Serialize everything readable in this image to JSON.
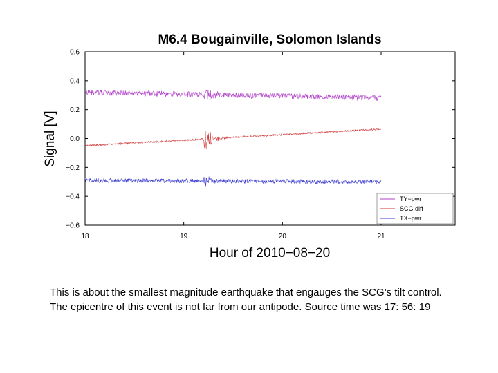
{
  "chart_data": {
    "type": "line",
    "title": "M6.4 Bougainville, Solomon Islands",
    "xlabel": "Hour of 2010−08−20",
    "ylabel": "Signal [V]",
    "xlim": [
      18,
      21.75
    ],
    "ylim": [
      -0.6,
      0.6
    ],
    "x_ticks": [
      18,
      19,
      20,
      21
    ],
    "y_ticks": [
      0.6,
      0.4,
      0.2,
      0.0,
      -0.2,
      -0.4,
      -0.6
    ],
    "y_tick_labels": [
      "0.6",
      "0.4",
      "0.2",
      "0.0",
      "−0.2",
      "−0.4",
      "−0.6"
    ],
    "legend_position": "bottom-right",
    "grid": false,
    "series": [
      {
        "name": "TY−pwr",
        "color": "#b040c8",
        "x_start": 18.0,
        "x_end": 21.0,
        "y_start": 0.32,
        "y_end": 0.28,
        "noise": 0.02,
        "quake_at": 19.22,
        "quake_amp": 0.06
      },
      {
        "name": "SCG diff",
        "color": "#d03a3a",
        "x_start": 18.0,
        "x_end": 21.0,
        "y_start": -0.05,
        "y_end": 0.065,
        "noise": 0.006,
        "quake_at": 19.22,
        "quake_amp": 0.09
      },
      {
        "name": "TX−pwr",
        "color": "#3a3ad0",
        "x_start": 18.0,
        "x_end": 21.0,
        "y_start": -0.29,
        "y_end": -0.3,
        "noise": 0.015,
        "quake_at": 19.22,
        "quake_amp": 0.04
      }
    ]
  },
  "caption": "This is about the smallest magnitude earthquake that engauges the SCG’s tilt control. The epicentre of this event is not far from our antipode.  Source time was 17: 56: 19"
}
